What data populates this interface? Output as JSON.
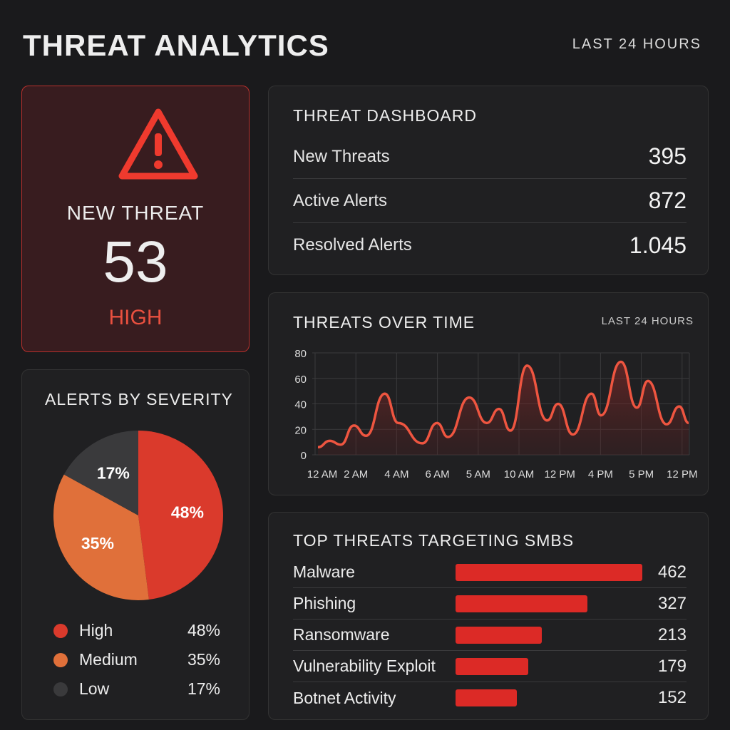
{
  "header": {
    "title": "THREAT ANALYTICS",
    "range": "LAST 24 HOURS"
  },
  "alert_card": {
    "icon": "warning-triangle-icon",
    "label": "NEW THREAT",
    "count": "53",
    "level": "HIGH",
    "accent": "#e9503f"
  },
  "dashboard": {
    "title": "THREAT DASHBOARD",
    "rows": [
      {
        "label": "New Threats",
        "value": "395"
      },
      {
        "label": "Active Alerts",
        "value": "872"
      },
      {
        "label": "Resolved Alerts",
        "value": "1.045"
      }
    ]
  },
  "severity": {
    "title": "ALERTS BY SEVERITY",
    "items": [
      {
        "label": "High",
        "pct": "48%",
        "value": 48,
        "color": "#da3a2c"
      },
      {
        "label": "Medium",
        "pct": "35%",
        "value": 35,
        "color": "#e0703a"
      },
      {
        "label": "Low",
        "pct": "17%",
        "value": 17,
        "color": "#3a3a3c"
      }
    ]
  },
  "chart_data": {
    "type": "area",
    "title": "THREATS OVER TIME",
    "subtitle": "LAST 24 HOURS",
    "ylim": [
      0,
      80
    ],
    "yticks": [
      "0",
      "20",
      "40",
      "60",
      "80"
    ],
    "xticks": [
      "12 AM",
      "2 AM",
      "4 AM",
      "6 AM",
      "5 AM",
      "10 AM",
      "12 PM",
      "4 PM",
      "5 PM",
      "12 PM"
    ],
    "grid": true,
    "color": "#ee5540",
    "x": [
      0.07,
      0.36,
      0.63,
      0.95,
      1.25,
      1.71,
      2.04,
      2.63,
      2.99,
      3.26,
      3.78,
      4.21,
      4.51,
      4.79,
      5.2,
      5.69,
      5.96,
      6.32,
      6.78,
      7.01,
      7.5,
      7.89,
      8.16,
      8.62,
      8.93,
      9.16
    ],
    "y": [
      6,
      11,
      8,
      23,
      15,
      48,
      25,
      9,
      25,
      14,
      45,
      25,
      36,
      19,
      70,
      27,
      40,
      16,
      48,
      31,
      73,
      37,
      58,
      24,
      38,
      25
    ]
  },
  "top_threats": {
    "title": "TOP THREATS TARGETING SMBS",
    "max": 462,
    "items": [
      {
        "label": "Malware",
        "value": 462
      },
      {
        "label": "Phishing",
        "value": 327
      },
      {
        "label": "Ransomware",
        "value": 213
      },
      {
        "label": "Vulnerability Exploit",
        "value": 179
      },
      {
        "label": "Botnet Activity",
        "value": 152
      }
    ]
  }
}
